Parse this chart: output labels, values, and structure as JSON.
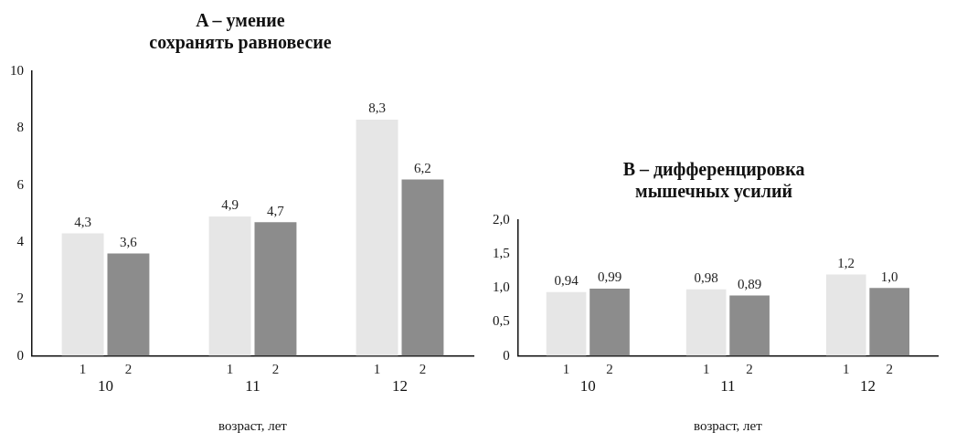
{
  "chart_data": [
    {
      "type": "bar",
      "title": "A – умение\nсохранять равновесие",
      "xlabel": "возраст, лет",
      "categories": [
        "10",
        "11",
        "12"
      ],
      "series": [
        {
          "name": "1",
          "color": "#e6e6e6",
          "values": [
            4.3,
            4.9,
            8.3
          ],
          "value_labels": [
            "4,3",
            "4,9",
            "8,3"
          ]
        },
        {
          "name": "2",
          "color": "#8c8c8c",
          "values": [
            3.6,
            4.7,
            6.2
          ],
          "value_labels": [
            "3,6",
            "4,7",
            "6,2"
          ]
        }
      ],
      "ylim": [
        0,
        10
      ],
      "yticks": [
        0,
        2,
        4,
        6,
        8,
        10
      ],
      "grid": false,
      "legend": false
    },
    {
      "type": "bar",
      "title": "B – дифференцировка\nмышечных усилий",
      "xlabel": "возраст, лет",
      "categories": [
        "10",
        "11",
        "12"
      ],
      "series": [
        {
          "name": "1",
          "color": "#e6e6e6",
          "values": [
            0.94,
            0.98,
            1.2
          ],
          "value_labels": [
            "0,94",
            "0,98",
            "1,2"
          ]
        },
        {
          "name": "2",
          "color": "#8c8c8c",
          "values": [
            0.99,
            0.89,
            1.0
          ],
          "value_labels": [
            "0,99",
            "0,89",
            "1,0"
          ]
        }
      ],
      "ylim": [
        0,
        2
      ],
      "yticks": [
        0,
        {
          "value": 0.5,
          "label": "0,5"
        },
        {
          "value": 1,
          "label": "1,0"
        },
        {
          "value": 1.5,
          "label": "1,5"
        },
        {
          "value": 2,
          "label": "2,0"
        }
      ],
      "grid": false,
      "legend": false
    }
  ]
}
